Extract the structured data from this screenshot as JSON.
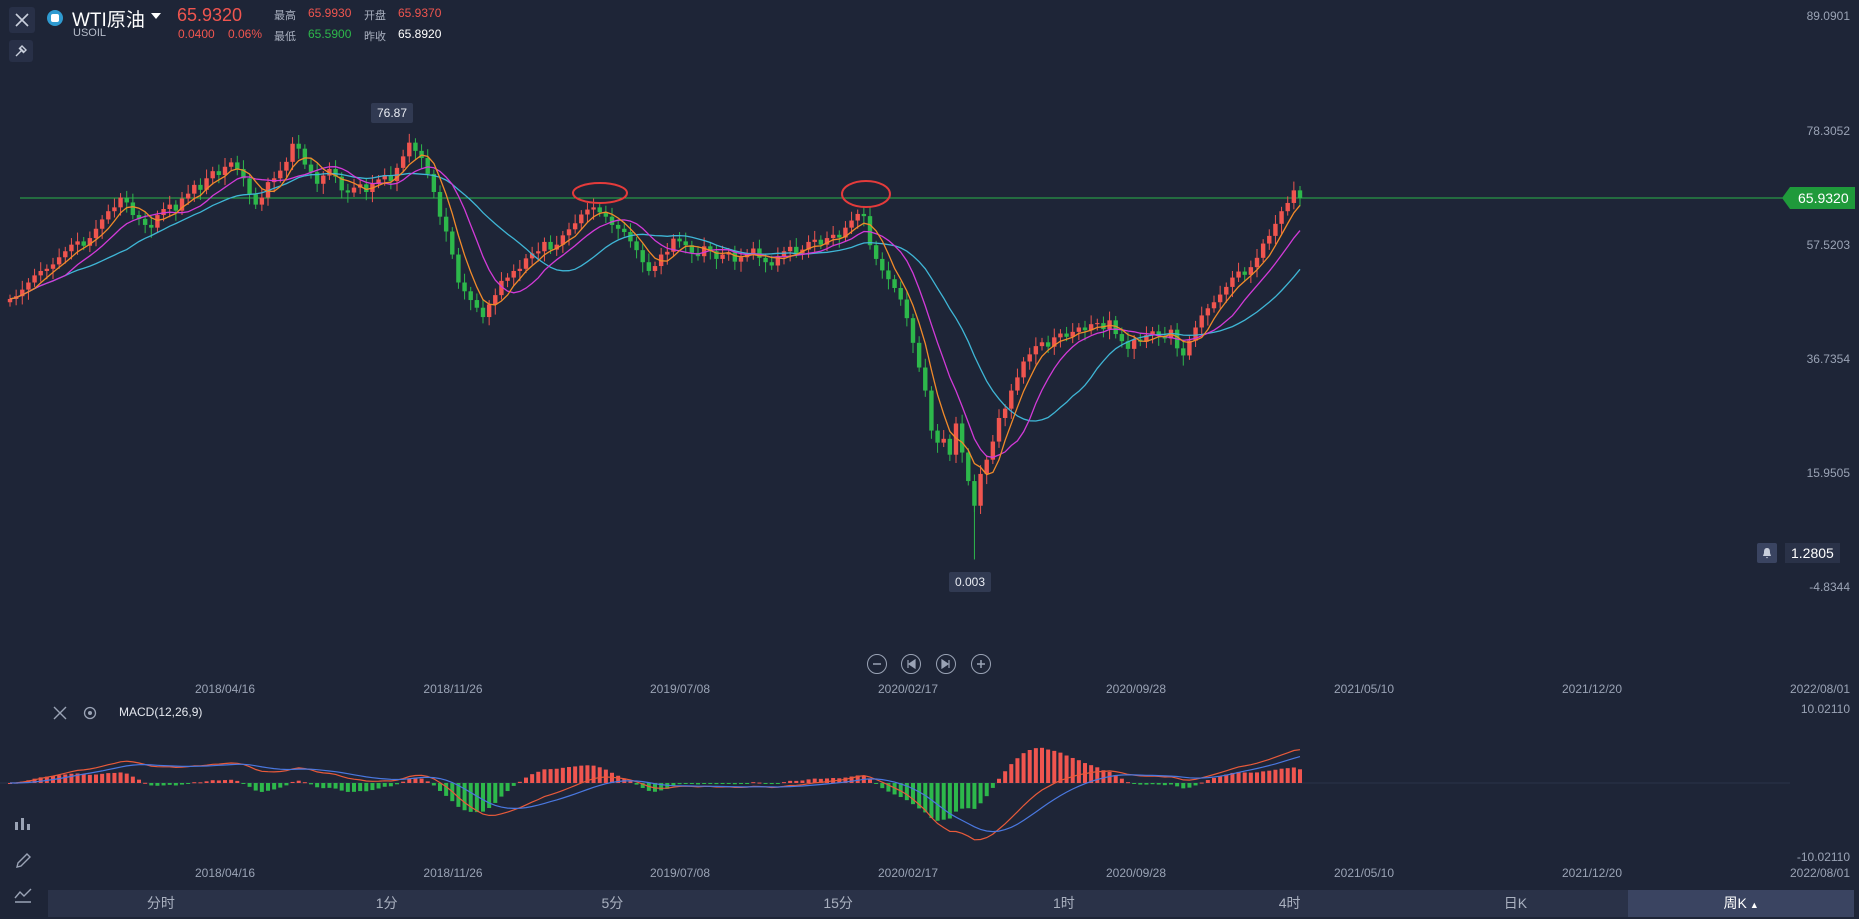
{
  "header": {
    "symbol_name": "WTI原油",
    "symbol_code": "USOIL",
    "last_price": "65.9320",
    "change": "0.0400",
    "change_pct": "0.06%",
    "high_label": "最高",
    "high_value": "65.9930",
    "open_label": "开盘",
    "open_value": "65.9370",
    "low_label": "最低",
    "low_value": "65.5900",
    "prev_close_label": "昨收",
    "prev_close_value": "65.8920"
  },
  "price_axis": {
    "labels": [
      "89.0901",
      "78.3052",
      "57.5203",
      "36.7354",
      "15.9505",
      "-4.8344"
    ],
    "current_price_tag": "65.9320",
    "alert_value": "1.2805"
  },
  "annotations": {
    "high_tooltip": "76.87",
    "low_tooltip": "0.003"
  },
  "x_axis": {
    "labels": [
      "2018/04/16",
      "2018/11/26",
      "2019/07/08",
      "2020/02/17",
      "2020/09/28",
      "2021/05/10",
      "2021/12/20",
      "2022/08/01"
    ]
  },
  "macd": {
    "title": "MACD(12,26,9)",
    "axis_labels": [
      "10.02110",
      "-10.02110"
    ]
  },
  "timeframes": [
    "分时",
    "1分",
    "5分",
    "15分",
    "1时",
    "4时",
    "日K",
    "周K"
  ],
  "active_timeframe": "周K",
  "colors": {
    "up": "#f0554f",
    "down": "#2db84b",
    "ma_short": "#f08a2a",
    "ma_mid": "#d23ad8",
    "ma_long": "#3fb6d6",
    "macd_dif": "#e85a3a",
    "macd_dea": "#4a78e0"
  },
  "chart_data": {
    "type": "candlestick",
    "title": "WTI原油",
    "series": [
      {
        "name": "USOIL",
        "close": [
          47.5,
          48.0,
          49.2,
          50.5,
          51.8,
          52.6,
          53.0,
          53.8,
          55.1,
          56.2,
          57.4,
          58.0,
          57.2,
          58.6,
          60.3,
          62.0,
          63.5,
          64.2,
          66.0,
          65.1,
          62.8,
          62.1,
          61.0,
          60.5,
          62.8,
          63.9,
          64.7,
          63.6,
          65.8,
          66.7,
          68.3,
          67.4,
          69.5,
          70.8,
          70.1,
          71.6,
          72.4,
          71.2,
          69.5,
          66.6,
          64.7,
          66.0,
          68.8,
          69.5,
          70.9,
          72.5,
          75.8,
          74.9,
          72.0,
          70.6,
          68.5,
          70.0,
          71.2,
          69.8,
          67.3,
          66.9,
          67.8,
          68.4,
          67.0,
          68.5,
          69.3,
          70.1,
          69.0,
          71.4,
          73.5,
          76.0,
          74.5,
          73.2,
          70.3,
          67.0,
          62.5,
          59.8,
          55.6,
          50.5,
          48.9,
          47.3,
          45.9,
          44.2,
          46.5,
          48.2,
          50.8,
          51.4,
          52.6,
          53.0,
          54.9,
          55.8,
          56.2,
          57.9,
          56.5,
          57.4,
          59.1,
          60.2,
          61.3,
          62.9,
          63.8,
          64.2,
          63.3,
          62.5,
          61.0,
          60.3,
          59.7,
          58.0,
          56.4,
          54.2,
          52.6,
          53.5,
          55.6,
          56.1,
          58.5,
          58.0,
          57.3,
          55.9,
          55.3,
          57.1,
          56.2,
          54.8,
          55.6,
          56.0,
          54.3,
          55.1,
          55.8,
          56.7,
          55.0,
          54.2,
          53.6,
          55.3,
          56.2,
          57.0,
          55.8,
          56.5,
          57.9,
          58.3,
          57.4,
          58.6,
          59.2,
          58.7,
          60.5,
          61.8,
          63.0,
          62.6,
          57.3,
          54.8,
          52.7,
          51.1,
          49.5,
          47.4,
          44.0,
          39.5,
          35.0,
          30.8,
          23.5,
          21.3,
          22.0,
          19.1,
          24.8,
          19.5,
          14.3,
          9.8,
          15.6,
          18.2,
          21.5,
          25.8,
          27.5,
          30.8,
          33.2,
          36.1,
          37.4,
          38.9,
          39.6,
          38.8,
          40.5,
          41.2,
          40.6,
          41.5,
          42.3,
          41.8,
          42.9,
          43.1,
          42.0,
          43.6,
          41.1,
          39.8,
          38.4,
          40.1,
          39.7,
          40.9,
          41.6,
          40.8,
          40.3,
          41.9,
          38.5,
          37.2,
          39.9,
          42.3,
          44.5,
          45.8,
          46.9,
          48.3,
          49.7,
          51.4,
          52.5,
          51.9,
          53.3,
          55.0,
          57.6,
          59.0,
          61.2,
          63.5,
          65.0,
          67.3,
          65.9
        ],
        "note": "weekly candles; values estimated from the price axis"
      }
    ],
    "y_axis": {
      "ticks": [
        89.0901,
        78.3052,
        57.5203,
        36.7354,
        15.9505,
        -4.8344
      ]
    },
    "x_axis": {
      "ticks": [
        "2018/04/16",
        "2018/11/26",
        "2019/07/08",
        "2020/02/17",
        "2020/09/28",
        "2021/05/10",
        "2021/12/20",
        "2022/08/01"
      ]
    },
    "marked_high": 76.87,
    "marked_low": 0.003,
    "current_price": 65.932
  }
}
